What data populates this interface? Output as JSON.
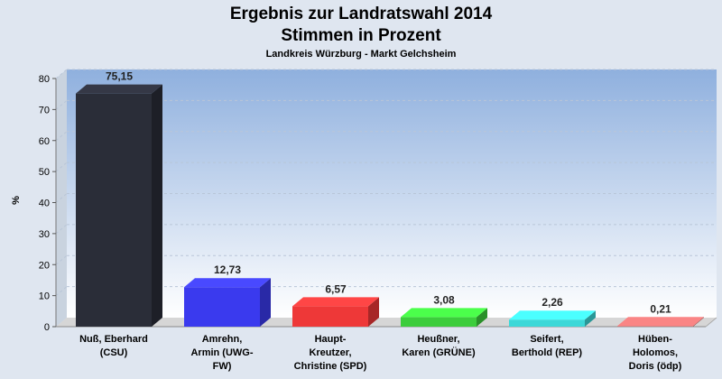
{
  "chart_data": {
    "type": "bar",
    "title": "Ergebnis zur Landratswahl 2014",
    "title_line2": "Stimmen in Prozent",
    "subtitle": "Landkreis Würzburg - Markt Gelchsheim",
    "ylabel": "%",
    "xlabel": "",
    "ylim": [
      0,
      80
    ],
    "yticks": [
      0,
      10,
      20,
      30,
      40,
      50,
      60,
      70,
      80
    ],
    "grid": true,
    "categories": [
      [
        "Nuß, Eberhard",
        "(CSU)"
      ],
      [
        "Amrehn,",
        "Armin (UWG-",
        "FW)"
      ],
      [
        "Haupt-",
        "Kreutzer,",
        "Christine (SPD)"
      ],
      [
        "Heußner,",
        "Karen (GRÜNE)"
      ],
      [
        "Seifert,",
        "Berthold (REP)"
      ],
      [
        "Hüben-",
        "Holomos,",
        "Doris (ödp)"
      ]
    ],
    "values": [
      75.15,
      12.73,
      6.57,
      3.08,
      2.26,
      0.21
    ],
    "value_labels": [
      "75,15",
      "12,73",
      "6,57",
      "3,08",
      "2,26",
      "0,21"
    ],
    "colors": [
      "#2a2d38",
      "#3a3aee",
      "#ee3838",
      "#3ccd3c",
      "#3cd8d8",
      "#c86a6a"
    ]
  }
}
